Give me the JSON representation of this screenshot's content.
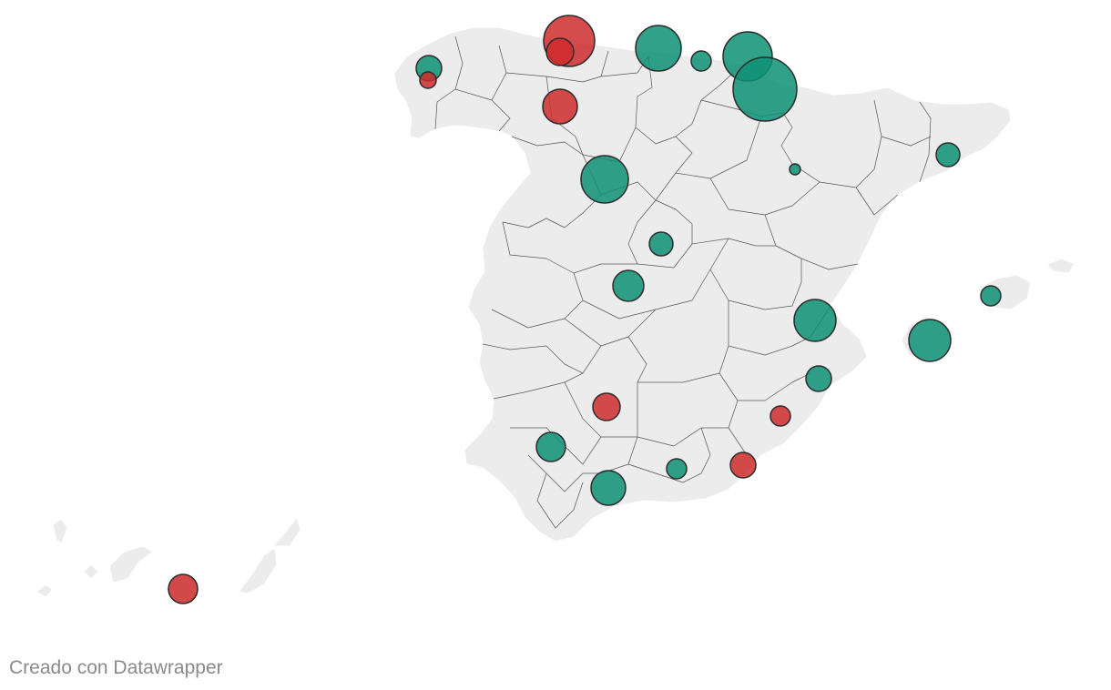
{
  "credit": "Creado con Datawrapper",
  "colors": {
    "land": "#ececec",
    "border": "#555555",
    "positive": "#0e9174",
    "negative": "#cf2b2b"
  },
  "bubbles": [
    {
      "region": "A Coruña",
      "category": "positive",
      "size": 2
    },
    {
      "region": "Pontevedra",
      "category": "negative",
      "size": 1
    },
    {
      "region": "Asturias",
      "category": "negative",
      "size": 4
    },
    {
      "region": "Asturias (interior)",
      "category": "negative",
      "size": 2
    },
    {
      "region": "Cantabria",
      "category": "positive",
      "size": 3
    },
    {
      "region": "Bizkaia",
      "category": "positive",
      "size": 1
    },
    {
      "region": "Gipuzkoa",
      "category": "positive",
      "size": 3.5
    },
    {
      "region": "Navarra",
      "category": "positive",
      "size": 5
    },
    {
      "region": "León",
      "category": "negative",
      "size": 2.5
    },
    {
      "region": "Valladolid",
      "category": "positive",
      "size": 3.5
    },
    {
      "region": "Huesca",
      "category": "positive",
      "size": 0.5
    },
    {
      "region": "Barcelona",
      "category": "positive",
      "size": 1.5
    },
    {
      "region": "Madrid",
      "category": "positive",
      "size": 1.5
    },
    {
      "region": "Toledo",
      "category": "positive",
      "size": 2
    },
    {
      "region": "Valencia",
      "category": "positive",
      "size": 3
    },
    {
      "region": "Mallorca",
      "category": "positive",
      "size": 3
    },
    {
      "region": "Menorca",
      "category": "positive",
      "size": 1.2
    },
    {
      "region": "Alicante",
      "category": "positive",
      "size": 1.7
    },
    {
      "region": "Ciudad Real",
      "category": "negative",
      "size": 2
    },
    {
      "region": "Murcia",
      "category": "negative",
      "size": 1.3
    },
    {
      "region": "Sevilla",
      "category": "positive",
      "size": 2
    },
    {
      "region": "Granada",
      "category": "positive",
      "size": 1.3
    },
    {
      "region": "Almería",
      "category": "negative",
      "size": 1.7
    },
    {
      "region": "Málaga",
      "category": "positive",
      "size": 2.2
    },
    {
      "region": "Tenerife",
      "category": "negative",
      "size": 1.8
    }
  ]
}
